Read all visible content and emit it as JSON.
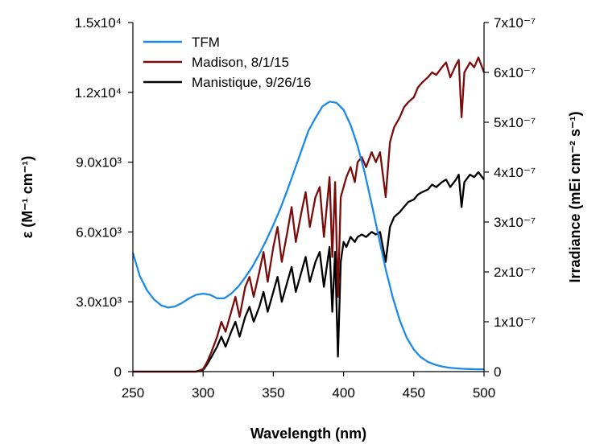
{
  "chart_data": {
    "type": "line",
    "title": "",
    "xlabel": "Wavelength (nm)",
    "ylabel_left": "ε (M⁻¹ cm⁻¹)",
    "ylabel_right": "Irradiance (mEi cm⁻² s⁻¹)",
    "xlim": [
      250,
      500
    ],
    "ylim_left": [
      0,
      15000
    ],
    "ylim_right": [
      0,
      7e-07
    ],
    "grid": false,
    "legend_position": "top-left",
    "x_ticks": [
      "250",
      "300",
      "350",
      "400",
      "450",
      "500"
    ],
    "y_left_ticks": [
      "0",
      "3.0x10³",
      "6.0x10³",
      "9.0x10³",
      "1.2x10⁴",
      "1.5x10⁴"
    ],
    "y_right_ticks": [
      "0",
      "1x10⁻⁷",
      "2x10⁻⁷",
      "3x10⁻⁷",
      "4x10⁻⁷",
      "5x10⁻⁷",
      "6x10⁻⁷",
      "7x10⁻⁷"
    ],
    "series": [
      {
        "name": "TFM",
        "axis": "left",
        "color": "#1c8ae6",
        "x": [
          250,
          255,
          260,
          265,
          270,
          275,
          280,
          285,
          290,
          295,
          300,
          305,
          310,
          315,
          320,
          325,
          330,
          335,
          340,
          345,
          350,
          355,
          360,
          365,
          370,
          375,
          380,
          385,
          390,
          395,
          400,
          405,
          410,
          415,
          420,
          425,
          430,
          435,
          440,
          445,
          450,
          455,
          460,
          465,
          470,
          475,
          480,
          485,
          490,
          495,
          500
        ],
        "y": [
          5100,
          4100,
          3500,
          3100,
          2850,
          2750,
          2800,
          2950,
          3150,
          3300,
          3350,
          3300,
          3150,
          3150,
          3350,
          3650,
          4050,
          4500,
          5050,
          5650,
          6300,
          7000,
          7800,
          8650,
          9500,
          10350,
          10900,
          11400,
          11600,
          11550,
          11250,
          10600,
          9700,
          8550,
          7200,
          5800,
          4400,
          3200,
          2200,
          1450,
          950,
          620,
          420,
          300,
          220,
          170,
          140,
          120,
          110,
          100,
          100
        ]
      },
      {
        "name": "Madison, 8/1/15",
        "axis": "right",
        "color": "#7a0c0c",
        "x": [
          250,
          260,
          270,
          280,
          290,
          295,
          300,
          303,
          306,
          310,
          313,
          316,
          320,
          323,
          326,
          330,
          333,
          336,
          340,
          343,
          346,
          350,
          353,
          356,
          360,
          363,
          366,
          370,
          373,
          376,
          380,
          383,
          386,
          390,
          392,
          394,
          396,
          398,
          400,
          402,
          405,
          408,
          410,
          413,
          416,
          420,
          423,
          426,
          430,
          433,
          436,
          440,
          443,
          446,
          450,
          453,
          456,
          460,
          463,
          466,
          470,
          473,
          476,
          480,
          482,
          484,
          486,
          490,
          493,
          496,
          500
        ],
        "y": [
          0,
          0,
          0,
          0,
          0,
          0,
          5e-09,
          2e-08,
          4e-08,
          7e-08,
          1e-07,
          8e-08,
          1.2e-07,
          1.5e-07,
          1.1e-07,
          1.7e-07,
          1.9e-07,
          1.5e-07,
          2e-07,
          2.4e-07,
          1.8e-07,
          2.5e-07,
          2.9e-07,
          2.2e-07,
          2.8e-07,
          3.3e-07,
          2.6e-07,
          3.2e-07,
          3.6e-07,
          2.9e-07,
          3.5e-07,
          3.7e-07,
          2.7e-07,
          3.9e-07,
          2.3e-07,
          3.8e-07,
          1.5e-07,
          3.5e-07,
          3.7e-07,
          3.9e-07,
          4.1e-07,
          3.8e-07,
          4.2e-07,
          4.3e-07,
          4.1e-07,
          4.4e-07,
          4.2e-07,
          4.4e-07,
          3.5e-07,
          4.6e-07,
          4.9e-07,
          5.1e-07,
          5.3e-07,
          5.4e-07,
          5.5e-07,
          5.7e-07,
          5.8e-07,
          5.9e-07,
          6e-07,
          5.95e-07,
          6.1e-07,
          6.2e-07,
          5.9e-07,
          6.15e-07,
          6.25e-07,
          5.1e-07,
          6e-07,
          6.2e-07,
          6.1e-07,
          6.3e-07,
          6e-07
        ]
      },
      {
        "name": "Manistique, 9/26/16",
        "axis": "right",
        "color": "#000000",
        "x": [
          250,
          260,
          270,
          280,
          290,
          295,
          300,
          303,
          306,
          310,
          313,
          316,
          320,
          323,
          326,
          330,
          333,
          336,
          340,
          343,
          346,
          350,
          353,
          356,
          360,
          363,
          366,
          370,
          373,
          376,
          380,
          383,
          386,
          390,
          392,
          394,
          396,
          398,
          400,
          402,
          405,
          408,
          410,
          413,
          416,
          420,
          423,
          426,
          430,
          433,
          436,
          440,
          443,
          446,
          450,
          453,
          456,
          460,
          463,
          466,
          470,
          473,
          476,
          480,
          482,
          484,
          486,
          490,
          493,
          496,
          500
        ],
        "y": [
          0,
          0,
          0,
          0,
          0,
          0,
          3e-09,
          1.5e-08,
          3e-08,
          5e-08,
          7e-08,
          5e-08,
          8e-08,
          1e-07,
          7e-08,
          1.1e-07,
          1.3e-07,
          1e-07,
          1.3e-07,
          1.6e-07,
          1.2e-07,
          1.6e-07,
          1.9e-07,
          1.4e-07,
          1.8e-07,
          2.1e-07,
          1.6e-07,
          2e-07,
          2.3e-07,
          1.8e-07,
          2.2e-07,
          2.4e-07,
          1.7e-07,
          2.5e-07,
          1.2e-07,
          2.4e-07,
          3e-08,
          2.2e-07,
          2.6e-07,
          2.5e-07,
          2.7e-07,
          2.6e-07,
          2.7e-07,
          2.75e-07,
          2.7e-07,
          2.8e-07,
          2.75e-07,
          2.8e-07,
          2.2e-07,
          2.9e-07,
          3.1e-07,
          3.2e-07,
          3.3e-07,
          3.4e-07,
          3.45e-07,
          3.55e-07,
          3.6e-07,
          3.65e-07,
          3.75e-07,
          3.7e-07,
          3.8e-07,
          3.85e-07,
          3.7e-07,
          3.85e-07,
          3.95e-07,
          3.3e-07,
          3.8e-07,
          3.95e-07,
          3.9e-07,
          4e-07,
          3.85e-07
        ]
      }
    ]
  }
}
